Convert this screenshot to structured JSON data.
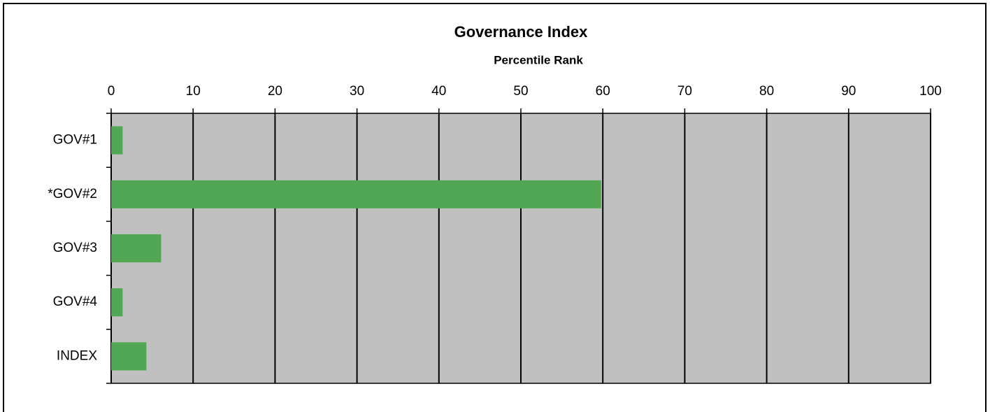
{
  "chart_data": {
    "type": "bar",
    "orientation": "horizontal",
    "title": "Governance Index",
    "subtitle": "Percentile Rank",
    "categories": [
      "GOV#1",
      "*GOV#2",
      "GOV#3",
      "GOV#4",
      "INDEX"
    ],
    "values": [
      1.4,
      59.8,
      6.1,
      1.4,
      4.3
    ],
    "color": "#52a755",
    "xlim": [
      0,
      100
    ],
    "xticks": [
      0,
      10,
      20,
      30,
      40,
      50,
      60,
      70,
      80,
      90,
      100
    ],
    "grid": true
  }
}
